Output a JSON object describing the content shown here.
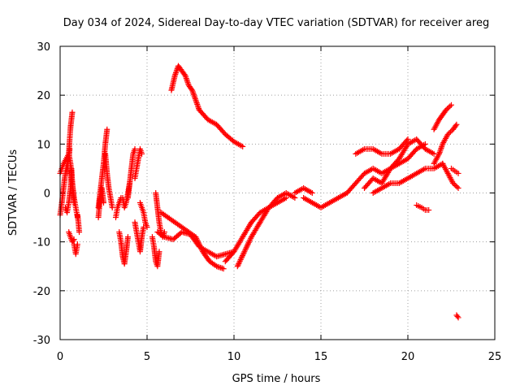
{
  "chart_data": {
    "type": "scatter",
    "title": "Day 034 of 2024, Sidereal Day-to-day VTEC variation (SDTVAR) for receiver areg",
    "xlabel": "GPS time / hours",
    "ylabel": "SDTVAR / TECUs",
    "xlim": [
      0,
      25
    ],
    "ylim": [
      -30,
      30
    ],
    "x_ticks": [
      "0",
      "5",
      "10",
      "15",
      "20",
      "25"
    ],
    "y_ticks": [
      "-30",
      "-20",
      "-10",
      "0",
      "10",
      "20",
      "30"
    ],
    "grid": true,
    "marker": "+",
    "color": "#ff0000",
    "series": [
      {
        "name": "s1",
        "x": [
          0.0,
          0.1,
          0.2,
          0.3,
          0.4,
          0.5,
          0.55
        ],
        "y": [
          -4.5,
          -2,
          1,
          4,
          6,
          7,
          9
        ]
      },
      {
        "name": "s2",
        "x": [
          0.0,
          0.1,
          0.2,
          0.35,
          0.5,
          0.6,
          0.7,
          0.8
        ],
        "y": [
          4,
          5,
          6,
          7,
          8,
          6,
          2,
          -2
        ]
      },
      {
        "name": "s3",
        "x": [
          0.4,
          0.45,
          0.5,
          0.55,
          0.6,
          0.65,
          0.7
        ],
        "y": [
          4,
          6,
          8,
          11,
          13.5,
          15,
          16.5
        ]
      },
      {
        "name": "s4",
        "x": [
          0.3,
          0.4,
          0.5,
          0.6,
          0.65,
          0.7,
          0.8,
          0.9,
          1.0
        ],
        "y": [
          -3,
          -4,
          -2,
          1,
          5,
          2,
          -1,
          -3,
          -5
        ]
      },
      {
        "name": "s5",
        "x": [
          0.5,
          0.6,
          0.7,
          0.8
        ],
        "y": [
          -8,
          -9,
          -10,
          -9.5
        ]
      },
      {
        "name": "s6",
        "x": [
          0.8,
          0.85,
          0.9,
          0.95,
          1.0
        ],
        "y": [
          -10.5,
          -11.5,
          -12.5,
          -11.5,
          -10.5
        ]
      },
      {
        "name": "s7",
        "x": [
          1.0,
          1.05,
          1.1
        ],
        "y": [
          -4.5,
          -6,
          -8
        ]
      },
      {
        "name": "s8",
        "x": [
          2.2,
          2.3,
          2.4,
          2.5,
          2.6,
          2.7
        ],
        "y": [
          -3,
          0,
          3,
          6,
          10,
          13
        ]
      },
      {
        "name": "s9",
        "x": [
          2.2,
          2.3,
          2.4,
          2.5
        ],
        "y": [
          -5,
          -1,
          1,
          -2
        ]
      },
      {
        "name": "s10",
        "x": [
          2.6,
          2.7,
          2.8,
          2.9,
          3.0
        ],
        "y": [
          8,
          4,
          1,
          -1,
          -3
        ]
      },
      {
        "name": "s11",
        "x": [
          3.2,
          3.3,
          3.4,
          3.5
        ],
        "y": [
          -5,
          -3,
          -2,
          -1
        ]
      },
      {
        "name": "s12",
        "x": [
          3.4,
          3.5,
          3.6,
          3.7,
          3.8,
          3.9
        ],
        "y": [
          -8,
          -10,
          -13,
          -14.5,
          -12,
          -9
        ]
      },
      {
        "name": "s13",
        "x": [
          3.9,
          4.0,
          4.1,
          4.2,
          4.3
        ],
        "y": [
          -1,
          2,
          5,
          8,
          9
        ]
      },
      {
        "name": "s14",
        "x": [
          3.6,
          3.7,
          3.8,
          3.9,
          4.0
        ],
        "y": [
          -1,
          -3,
          -2,
          0,
          2
        ]
      },
      {
        "name": "s15",
        "x": [
          4.3,
          4.4,
          4.5,
          4.6,
          4.7
        ],
        "y": [
          3,
          5,
          7,
          9,
          8
        ]
      },
      {
        "name": "s16",
        "x": [
          4.3,
          4.4,
          4.5,
          4.6,
          4.7,
          4.8
        ],
        "y": [
          -6,
          -8,
          -10,
          -12,
          -9,
          -7
        ]
      },
      {
        "name": "s17",
        "x": [
          4.6,
          4.7,
          4.8,
          4.9,
          5.0
        ],
        "y": [
          -2,
          -3,
          -4,
          -6,
          -7
        ]
      },
      {
        "name": "s18",
        "x": [
          5.3,
          5.4,
          5.5,
          5.6,
          5.7
        ],
        "y": [
          -9,
          -11,
          -14,
          -15,
          -12
        ]
      },
      {
        "name": "s19",
        "x": [
          5.5,
          5.6,
          5.7,
          5.8,
          5.9,
          6.0
        ],
        "y": [
          0,
          -3,
          -6,
          -8,
          -9,
          -8
        ]
      },
      {
        "name": "s20",
        "x": [
          5.6,
          6.0,
          6.5,
          7.0,
          7.5,
          8.0,
          8.5,
          9.0,
          9.5,
          10.0
        ],
        "y": [
          -8,
          -9,
          -9.5,
          -8,
          -8.5,
          -11,
          -12,
          -13,
          -12.5,
          -12
        ]
      },
      {
        "name": "s21",
        "x": [
          5.8,
          6.2,
          6.6,
          7.0,
          7.4,
          7.8,
          8.2,
          8.6,
          9.0,
          9.4
        ],
        "y": [
          -4,
          -5,
          -6,
          -7,
          -8,
          -9,
          -12,
          -14,
          -15,
          -15.5
        ]
      },
      {
        "name": "s22",
        "x": [
          6.4,
          6.6,
          6.8,
          7.0,
          7.2,
          7.4,
          7.6,
          7.8,
          8.0
        ],
        "y": [
          21,
          24,
          26,
          25,
          24,
          22,
          21,
          19,
          17
        ]
      },
      {
        "name": "s23",
        "x": [
          8.0,
          8.5,
          9.0,
          9.5,
          10.0,
          10.5
        ],
        "y": [
          17,
          15,
          14,
          12,
          10.5,
          9.5
        ]
      },
      {
        "name": "s24",
        "x": [
          9.5,
          10.0,
          10.5,
          11.0,
          11.5,
          12.0,
          12.5,
          13.0
        ],
        "y": [
          -14,
          -12,
          -9,
          -6,
          -4,
          -3,
          -2,
          -1
        ]
      },
      {
        "name": "s25",
        "x": [
          10.2,
          10.6,
          11.0,
          11.5,
          12.0,
          12.5,
          13.0,
          13.5
        ],
        "y": [
          -15,
          -12,
          -9,
          -6,
          -3,
          -1,
          0,
          -1
        ]
      },
      {
        "name": "s26",
        "x": [
          13.5,
          14.0,
          14.5
        ],
        "y": [
          0,
          1,
          0
        ]
      },
      {
        "name": "s27",
        "x": [
          14.0,
          14.5,
          15.0,
          15.5,
          16.0,
          16.5
        ],
        "y": [
          -1,
          -2,
          -3,
          -2,
          -1,
          0
        ]
      },
      {
        "name": "s28",
        "x": [
          16.5,
          17.0,
          17.5,
          18.0,
          18.5,
          19.0,
          19.5,
          20.0,
          20.5,
          21.0
        ],
        "y": [
          0,
          2,
          4,
          5,
          4,
          5,
          6,
          7,
          9,
          10
        ]
      },
      {
        "name": "s29",
        "x": [
          17.0,
          17.5,
          18.0,
          18.5,
          19.0,
          19.5,
          20.0
        ],
        "y": [
          8,
          9,
          9,
          8,
          8,
          9,
          11
        ]
      },
      {
        "name": "s30",
        "x": [
          17.5,
          18.0,
          18.5,
          19.0,
          19.5,
          20.0,
          20.5,
          21.0,
          21.5
        ],
        "y": [
          1,
          3,
          2,
          5,
          7,
          10,
          11,
          9,
          8
        ]
      },
      {
        "name": "s31",
        "x": [
          18.0,
          18.5,
          19.0,
          19.5,
          20.0,
          20.5,
          21.0,
          21.5,
          22.0
        ],
        "y": [
          0,
          1,
          2,
          2,
          3,
          4,
          5,
          5,
          6
        ]
      },
      {
        "name": "s32",
        "x": [
          20.5,
          20.8,
          21.0,
          21.2
        ],
        "y": [
          -2.5,
          -3,
          -3.5,
          -3.5
        ]
      },
      {
        "name": "s33",
        "x": [
          21.5,
          21.8,
          22.0,
          22.3,
          22.6,
          22.8
        ],
        "y": [
          6,
          8,
          10,
          12,
          13,
          14
        ]
      },
      {
        "name": "s34",
        "x": [
          21.5,
          21.8,
          22.0,
          22.2,
          22.5
        ],
        "y": [
          13,
          15,
          16,
          17,
          18
        ]
      },
      {
        "name": "s35",
        "x": [
          22.0,
          22.3,
          22.6,
          22.9
        ],
        "y": [
          6,
          4,
          2,
          1
        ]
      },
      {
        "name": "s36",
        "x": [
          22.5,
          22.7,
          22.9
        ],
        "y": [
          5,
          4.5,
          4
        ]
      },
      {
        "name": "s37",
        "x": [
          22.8,
          22.9
        ],
        "y": [
          -25,
          -25.5
        ]
      }
    ]
  }
}
